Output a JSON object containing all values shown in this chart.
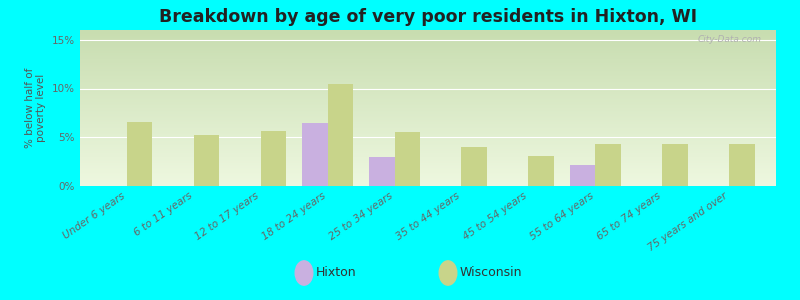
{
  "title": "Breakdown by age of very poor residents in Hixton, WI",
  "ylabel": "% below half of\npoverty level",
  "categories": [
    "Under 6 years",
    "6 to 11 years",
    "12 to 17 years",
    "18 to 24 years",
    "25 to 34 years",
    "35 to 44 years",
    "45 to 54 years",
    "55 to 64 years",
    "65 to 74 years",
    "75 years and over"
  ],
  "hixton": [
    0,
    0,
    0,
    6.5,
    3.0,
    0,
    0,
    2.2,
    0,
    0
  ],
  "wisconsin": [
    6.6,
    5.2,
    5.6,
    10.5,
    5.5,
    4.0,
    3.1,
    4.3,
    4.3,
    4.3
  ],
  "hixton_color": "#c9b0e0",
  "wisconsin_color": "#c8d48a",
  "bg_top": "#c8ddb0",
  "bg_bottom": "#eef8e0",
  "outer_bg": "#00ffff",
  "ylim": [
    0,
    16
  ],
  "yticks": [
    0,
    5,
    10,
    15
  ],
  "ytick_labels": [
    "0%",
    "5%",
    "10%",
    "15%"
  ],
  "bar_width": 0.38,
  "title_fontsize": 12.5,
  "axis_label_fontsize": 7.5,
  "tick_fontsize": 7.5
}
